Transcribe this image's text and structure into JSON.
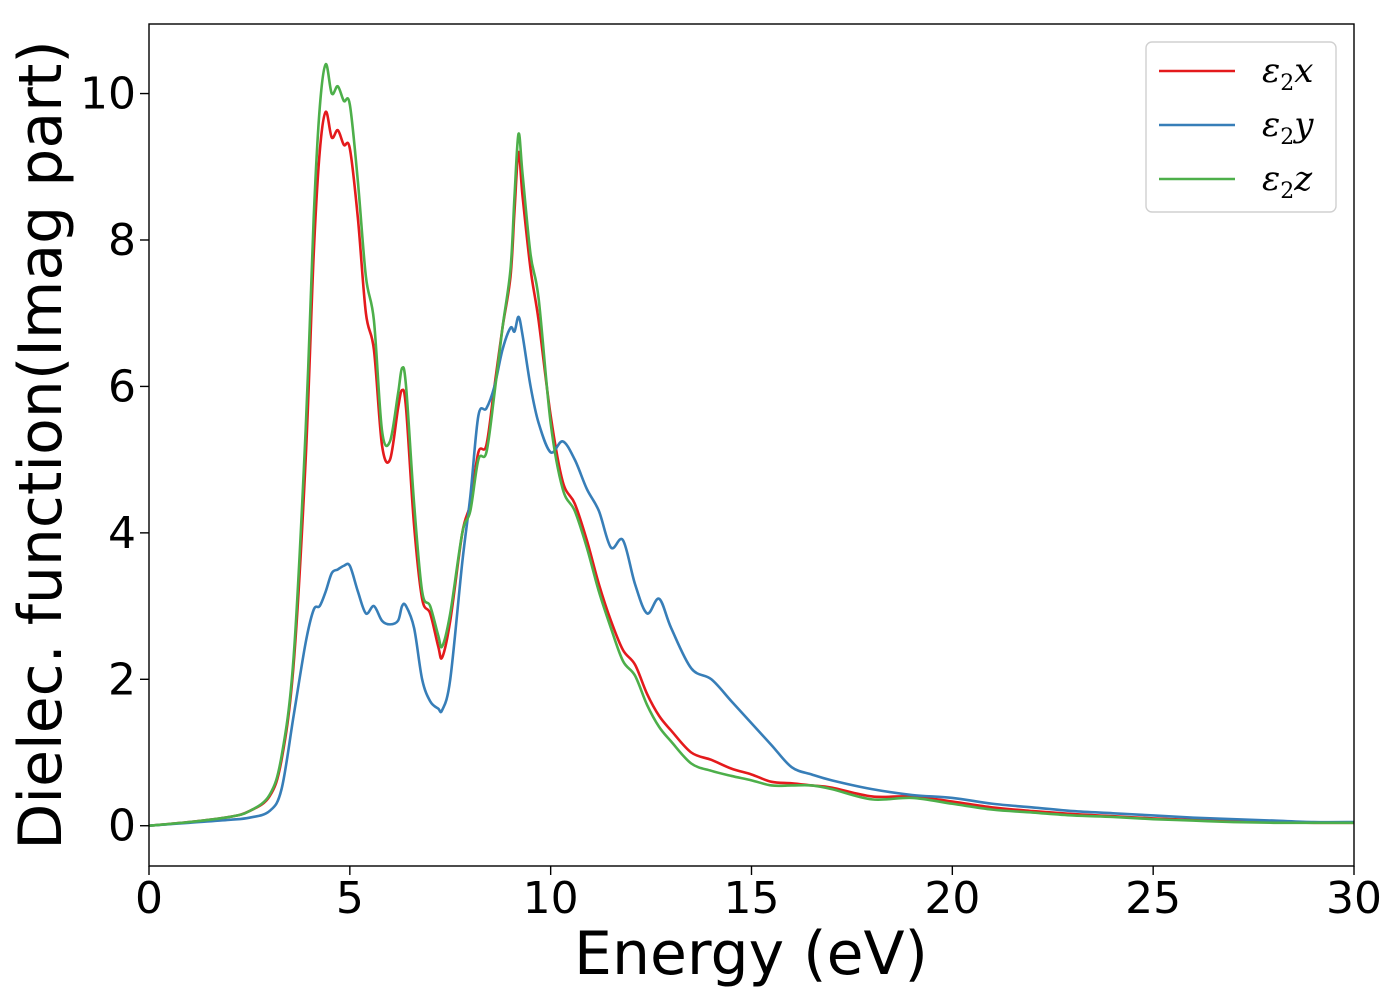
{
  "chart_data": {
    "type": "line",
    "title": "",
    "xlabel": "Energy (eV)",
    "ylabel": "Dielec. function(Imag part)",
    "xlim": [
      0,
      30
    ],
    "ylim": [
      -0.55,
      10.95
    ],
    "xticks": [
      0,
      5,
      10,
      15,
      20,
      25,
      30
    ],
    "yticks": [
      0,
      2,
      4,
      6,
      8,
      10
    ],
    "grid": false,
    "legend_position": "top-right",
    "series": [
      {
        "name": "ε2x",
        "name_base": "ε",
        "name_sub": "2",
        "name_suffix": "x",
        "color": "#e41a1c",
        "x": [
          0,
          1,
          2,
          2.5,
          3,
          3.3,
          3.6,
          3.9,
          4.1,
          4.25,
          4.4,
          4.55,
          4.7,
          4.85,
          5.0,
          5.2,
          5.4,
          5.6,
          5.8,
          6.0,
          6.2,
          6.3,
          6.4,
          6.6,
          6.8,
          7.0,
          7.2,
          7.3,
          7.5,
          7.8,
          8.0,
          8.2,
          8.4,
          8.6,
          8.8,
          9.0,
          9.1,
          9.2,
          9.3,
          9.5,
          9.7,
          10.0,
          10.3,
          10.6,
          10.9,
          11.2,
          11.5,
          11.8,
          12.1,
          12.4,
          12.7,
          13.0,
          13.5,
          14.0,
          14.5,
          15.0,
          15.5,
          16.0,
          16.5,
          17.0,
          18.0,
          19.0,
          20.0,
          21.0,
          22.0,
          23.0,
          24.0,
          25.0,
          26.0,
          27.0,
          28.0,
          29.0,
          30.0
        ],
        "y": [
          0,
          0.05,
          0.12,
          0.2,
          0.4,
          0.9,
          2.2,
          5.0,
          7.8,
          9.2,
          9.75,
          9.4,
          9.5,
          9.3,
          9.25,
          8.3,
          7.0,
          6.5,
          5.2,
          5.0,
          5.7,
          5.95,
          5.7,
          4.1,
          3.1,
          2.9,
          2.45,
          2.3,
          2.8,
          4.0,
          4.4,
          5.1,
          5.2,
          6.0,
          6.8,
          7.5,
          8.4,
          9.2,
          8.6,
          7.6,
          6.9,
          5.6,
          4.7,
          4.4,
          3.9,
          3.3,
          2.8,
          2.4,
          2.2,
          1.8,
          1.5,
          1.3,
          1.0,
          0.9,
          0.78,
          0.7,
          0.6,
          0.58,
          0.55,
          0.52,
          0.4,
          0.4,
          0.33,
          0.25,
          0.2,
          0.16,
          0.13,
          0.1,
          0.08,
          0.06,
          0.05,
          0.04,
          0.04
        ]
      },
      {
        "name": "ε2y",
        "name_base": "ε",
        "name_sub": "2",
        "name_suffix": "y",
        "color": "#377eb8",
        "x": [
          0,
          1,
          2,
          2.5,
          3,
          3.3,
          3.6,
          3.9,
          4.1,
          4.25,
          4.4,
          4.55,
          4.7,
          4.85,
          5.0,
          5.2,
          5.4,
          5.6,
          5.8,
          6.0,
          6.2,
          6.3,
          6.4,
          6.6,
          6.8,
          7.0,
          7.2,
          7.3,
          7.5,
          7.8,
          8.0,
          8.2,
          8.4,
          8.6,
          8.8,
          9.0,
          9.1,
          9.2,
          9.3,
          9.5,
          9.7,
          10.0,
          10.3,
          10.6,
          10.9,
          11.2,
          11.5,
          11.8,
          12.1,
          12.4,
          12.7,
          13.0,
          13.5,
          14.0,
          14.5,
          15.0,
          15.5,
          16.0,
          16.5,
          17.0,
          18.0,
          19.0,
          20.0,
          21.0,
          22.0,
          23.0,
          24.0,
          25.0,
          26.0,
          27.0,
          28.0,
          29.0,
          30.0
        ],
        "y": [
          0,
          0.04,
          0.08,
          0.11,
          0.2,
          0.5,
          1.5,
          2.5,
          2.95,
          3.0,
          3.2,
          3.45,
          3.5,
          3.55,
          3.55,
          3.2,
          2.9,
          3.0,
          2.8,
          2.75,
          2.8,
          3.0,
          3.0,
          2.7,
          2.0,
          1.7,
          1.6,
          1.58,
          2.0,
          3.6,
          4.5,
          5.6,
          5.7,
          6.0,
          6.5,
          6.8,
          6.75,
          6.95,
          6.7,
          6.0,
          5.5,
          5.1,
          5.25,
          5.0,
          4.6,
          4.3,
          3.8,
          3.9,
          3.3,
          2.9,
          3.1,
          2.7,
          2.15,
          2.0,
          1.7,
          1.4,
          1.1,
          0.8,
          0.7,
          0.62,
          0.5,
          0.42,
          0.38,
          0.3,
          0.25,
          0.2,
          0.17,
          0.14,
          0.11,
          0.09,
          0.07,
          0.05,
          0.05
        ]
      },
      {
        "name": "ε2z",
        "name_base": "ε",
        "name_sub": "2",
        "name_suffix": "z",
        "color": "#4daf4a",
        "x": [
          0,
          1,
          2,
          2.5,
          3,
          3.3,
          3.6,
          3.9,
          4.1,
          4.25,
          4.4,
          4.55,
          4.7,
          4.85,
          5.0,
          5.2,
          5.4,
          5.6,
          5.8,
          6.0,
          6.2,
          6.3,
          6.4,
          6.6,
          6.8,
          7.0,
          7.2,
          7.3,
          7.5,
          7.8,
          8.0,
          8.2,
          8.4,
          8.6,
          8.8,
          9.0,
          9.1,
          9.2,
          9.3,
          9.5,
          9.7,
          10.0,
          10.3,
          10.6,
          10.9,
          11.2,
          11.5,
          11.8,
          12.1,
          12.4,
          12.7,
          13.0,
          13.5,
          14.0,
          14.5,
          15.0,
          15.5,
          16.0,
          16.5,
          17.0,
          18.0,
          19.0,
          20.0,
          21.0,
          22.0,
          23.0,
          24.0,
          25.0,
          26.0,
          27.0,
          28.0,
          29.0,
          30.0
        ],
        "y": [
          0,
          0.05,
          0.12,
          0.2,
          0.42,
          0.95,
          2.3,
          5.4,
          8.3,
          9.8,
          10.4,
          10.0,
          10.1,
          9.9,
          9.85,
          8.8,
          7.5,
          6.9,
          5.4,
          5.25,
          5.9,
          6.25,
          6.0,
          4.4,
          3.2,
          3.0,
          2.6,
          2.45,
          2.9,
          4.0,
          4.3,
          5.0,
          5.1,
          5.9,
          6.8,
          7.6,
          8.6,
          9.45,
          8.9,
          7.8,
          7.2,
          5.5,
          4.6,
          4.3,
          3.8,
          3.2,
          2.7,
          2.25,
          2.05,
          1.65,
          1.35,
          1.15,
          0.85,
          0.75,
          0.68,
          0.62,
          0.55,
          0.55,
          0.55,
          0.5,
          0.36,
          0.38,
          0.3,
          0.22,
          0.18,
          0.14,
          0.12,
          0.09,
          0.07,
          0.05,
          0.04,
          0.04,
          0.04
        ]
      }
    ]
  }
}
